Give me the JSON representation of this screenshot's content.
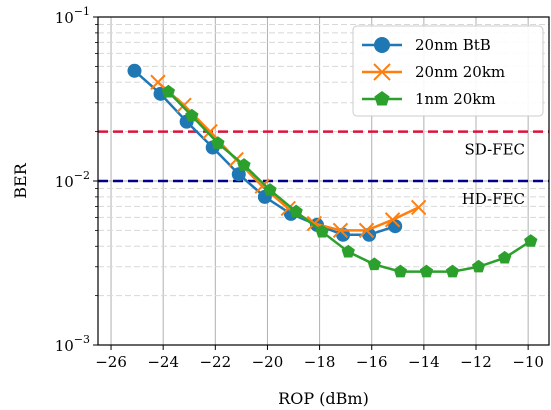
{
  "chart_data": {
    "type": "line",
    "xlabel": "ROP (dBm)",
    "ylabel": "BER",
    "xlim": [
      -26.5,
      -9.2
    ],
    "ylim": [
      0.001,
      0.1
    ],
    "yscale": "log",
    "xticks": [
      -26,
      -24,
      -22,
      -20,
      -18,
      -16,
      -14,
      -12,
      -10
    ],
    "xtick_labels": [
      "−26",
      "−24",
      "−22",
      "−20",
      "−18",
      "−16",
      "−14",
      "−12",
      "−10"
    ],
    "yticks": [
      {
        "value": 0.1,
        "base": "10",
        "exp": "−1"
      },
      {
        "value": 0.01,
        "base": "10",
        "exp": "−2"
      },
      {
        "value": 0.001,
        "base": "10",
        "exp": "−3"
      }
    ],
    "grid": true,
    "legend_position": "top-right",
    "series": [
      {
        "name": "20nm BtB",
        "color": "#1f77b4",
        "marker": "circle",
        "x": [
          -25.1,
          -24.1,
          -23.1,
          -22.1,
          -21.1,
          -20.1,
          -19.1,
          -18.1,
          -17.1,
          -16.1,
          -15.1
        ],
        "y": [
          0.047,
          0.034,
          0.023,
          0.016,
          0.011,
          0.008,
          0.0063,
          0.0054,
          0.0047,
          0.0047,
          0.0053
        ]
      },
      {
        "name": "20nm 20km",
        "color": "#ff7f0e",
        "marker": "x",
        "x": [
          -24.2,
          -23.2,
          -22.2,
          -21.2,
          -20.2,
          -19.2,
          -18.2,
          -17.2,
          -16.2,
          -15.2,
          -14.2
        ],
        "y": [
          0.04,
          0.029,
          0.02,
          0.0135,
          0.0093,
          0.0068,
          0.0055,
          0.005,
          0.005,
          0.0058,
          0.0069
        ]
      },
      {
        "name": "1nm 20km",
        "color": "#2ca02c",
        "marker": "pentagon",
        "x": [
          -23.8,
          -22.9,
          -21.9,
          -20.9,
          -19.9,
          -18.9,
          -17.9,
          -16.9,
          -15.9,
          -14.9,
          -13.9,
          -12.9,
          -11.9,
          -10.9,
          -9.9
        ],
        "y": [
          0.035,
          0.025,
          0.017,
          0.0125,
          0.0088,
          0.0065,
          0.0049,
          0.0037,
          0.0031,
          0.0028,
          0.0028,
          0.0028,
          0.003,
          0.0034,
          0.0043
        ]
      }
    ],
    "thresholds": [
      {
        "label": "SD-FEC",
        "y": 0.02,
        "color": "#dc143c"
      },
      {
        "label": "HD-FEC",
        "y": 0.01,
        "color": "#00008b"
      }
    ]
  }
}
